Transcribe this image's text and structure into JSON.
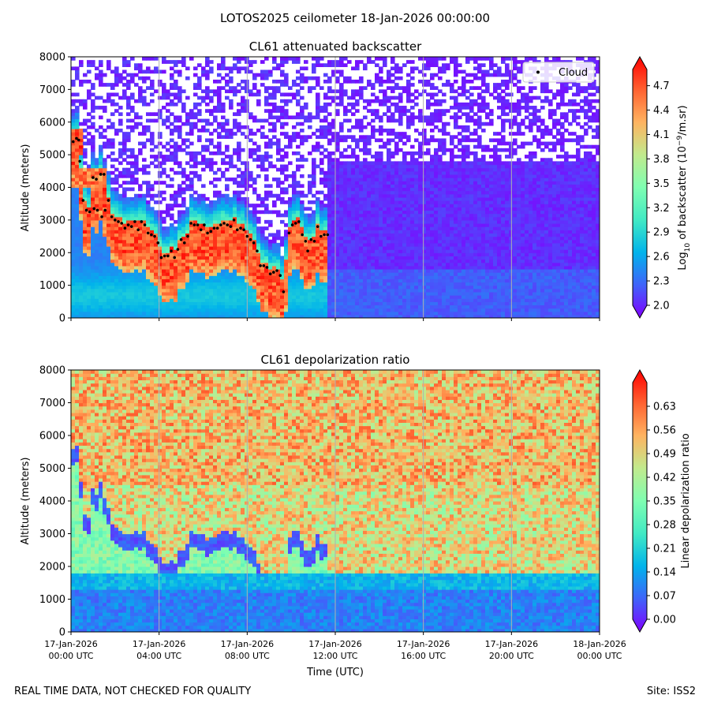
{
  "page": {
    "suptitle": "LOTOS2025 ceilometer 18-Jan-2026 00:00:00",
    "footer_left": "REAL TIME DATA, NOT CHECKED FOR QUALITY",
    "footer_right": "Site: ISS2"
  },
  "colors": {
    "colormap": [
      "#8000ff",
      "#4062fa",
      "#01b3eb",
      "#41eac4",
      "#7ffeb1",
      "#c1ea8d",
      "#ffb360",
      "#ff6130",
      "#ff0000"
    ],
    "cloud_marker": "#000000",
    "gridline": "#b0b0b0"
  },
  "chart_data": [
    {
      "type": "heatmap",
      "title": "CL61 attenuated backscatter",
      "xlabel": "",
      "ylabel": "Altitude (meters)",
      "xlim": [
        0,
        24
      ],
      "ylim": [
        0,
        8000
      ],
      "yticks": [
        0,
        1000,
        2000,
        3000,
        4000,
        5000,
        6000,
        7000,
        8000
      ],
      "grid": "vertical",
      "legend": {
        "position": "top-right",
        "entries": [
          "Cloud"
        ]
      },
      "colorbar": {
        "label": "Log10 of backscatter (10⁻⁹/m.sr)",
        "label_base": "Log",
        "label_sub": "10",
        "label_mid": " of backscatter (10",
        "label_sup": "−9",
        "label_end": "/m.sr)",
        "vmin": 2.0,
        "vmax": 4.9,
        "ticks": [
          "2.0",
          "2.3",
          "2.6",
          "2.9",
          "3.2",
          "3.5",
          "3.8",
          "4.1",
          "4.4",
          "4.7"
        ]
      },
      "cloud_points": [
        [
          0.1,
          5400
        ],
        [
          0.25,
          5500
        ],
        [
          0.35,
          5450
        ],
        [
          0.4,
          4800
        ],
        [
          0.55,
          3600
        ],
        [
          0.7,
          3300
        ],
        [
          0.85,
          3250
        ],
        [
          1.0,
          4300
        ],
        [
          1.05,
          3350
        ],
        [
          1.15,
          4250
        ],
        [
          1.2,
          3300
        ],
        [
          1.35,
          4400
        ],
        [
          1.4,
          3100
        ],
        [
          1.5,
          4400
        ],
        [
          1.55,
          3300
        ],
        [
          1.7,
          3600
        ],
        [
          1.85,
          3100
        ],
        [
          2.0,
          3000
        ],
        [
          2.15,
          2950
        ],
        [
          2.3,
          2900
        ],
        [
          2.45,
          2750
        ],
        [
          2.6,
          2850
        ],
        [
          2.75,
          2800
        ],
        [
          2.9,
          2950
        ],
        [
          3.05,
          2700
        ],
        [
          3.2,
          2950
        ],
        [
          3.35,
          2850
        ],
        [
          3.5,
          2600
        ],
        [
          3.65,
          2550
        ],
        [
          3.8,
          2500
        ],
        [
          3.95,
          2300
        ],
        [
          4.1,
          1850
        ],
        [
          4.25,
          1900
        ],
        [
          4.4,
          1900
        ],
        [
          4.55,
          2050
        ],
        [
          4.7,
          1850
        ],
        [
          4.85,
          2100
        ],
        [
          5.0,
          2400
        ],
        [
          5.15,
          2300
        ],
        [
          5.3,
          2500
        ],
        [
          5.45,
          2900
        ],
        [
          5.6,
          2850
        ],
        [
          5.75,
          2850
        ],
        [
          5.9,
          2700
        ],
        [
          6.05,
          2850
        ],
        [
          6.2,
          2600
        ],
        [
          6.35,
          2650
        ],
        [
          6.5,
          2750
        ],
        [
          6.65,
          2750
        ],
        [
          6.8,
          2850
        ],
        [
          6.95,
          2900
        ],
        [
          7.1,
          2850
        ],
        [
          7.25,
          2800
        ],
        [
          7.4,
          3000
        ],
        [
          7.55,
          2700
        ],
        [
          7.7,
          2750
        ],
        [
          7.85,
          2700
        ],
        [
          8.0,
          2500
        ],
        [
          8.15,
          2400
        ],
        [
          8.3,
          2300
        ],
        [
          8.45,
          2050
        ],
        [
          8.6,
          1600
        ],
        [
          8.75,
          1600
        ],
        [
          8.9,
          1550
        ],
        [
          9.05,
          1350
        ],
        [
          9.2,
          1400
        ],
        [
          9.35,
          1450
        ],
        [
          9.5,
          1300
        ],
        [
          9.65,
          800
        ],
        [
          9.9,
          2600
        ],
        [
          10.05,
          2850
        ],
        [
          10.2,
          2900
        ],
        [
          10.35,
          2950
        ],
        [
          10.5,
          2550
        ],
        [
          10.65,
          2350
        ],
        [
          10.75,
          2050
        ],
        [
          10.9,
          2400
        ],
        [
          11.05,
          2350
        ],
        [
          11.2,
          2800
        ],
        [
          11.35,
          2500
        ],
        [
          11.5,
          2550
        ],
        [
          11.65,
          2550
        ]
      ]
    },
    {
      "type": "heatmap",
      "title": "CL61 depolarization ratio",
      "xlabel": "Time (UTC)",
      "ylabel": "Altitude (meters)",
      "xlim": [
        0,
        24
      ],
      "ylim": [
        0,
        8000
      ],
      "yticks": [
        0,
        1000,
        2000,
        3000,
        4000,
        5000,
        6000,
        7000,
        8000
      ],
      "xticks": [
        0,
        4,
        8,
        12,
        16,
        20,
        24
      ],
      "xticklabels": [
        [
          "17-Jan-2026",
          "00:00 UTC"
        ],
        [
          "17-Jan-2026",
          "04:00 UTC"
        ],
        [
          "17-Jan-2026",
          "08:00 UTC"
        ],
        [
          "17-Jan-2026",
          "12:00 UTC"
        ],
        [
          "17-Jan-2026",
          "16:00 UTC"
        ],
        [
          "17-Jan-2026",
          "20:00 UTC"
        ],
        [
          "18-Jan-2026",
          "00:00 UTC"
        ]
      ],
      "grid": "vertical",
      "colorbar": {
        "label": "Linear depolarization ratio",
        "vmin": 0.0,
        "vmax": 0.7,
        "ticks": [
          "0.00",
          "0.07",
          "0.14",
          "0.21",
          "0.28",
          "0.35",
          "0.42",
          "0.49",
          "0.56",
          "0.63"
        ]
      }
    }
  ]
}
